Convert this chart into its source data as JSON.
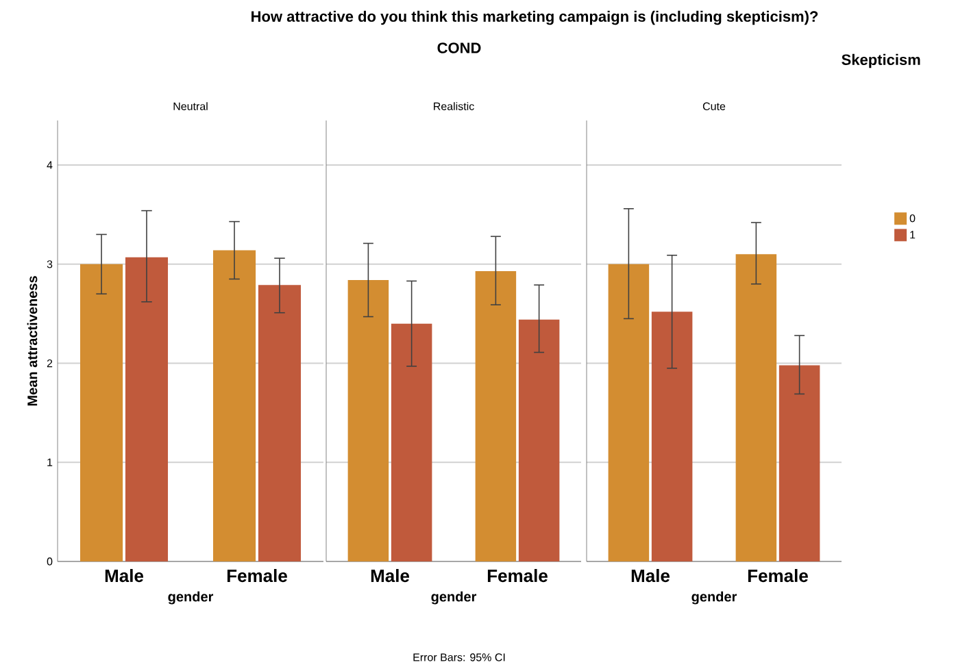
{
  "chart_data": [
    {
      "type": "bar",
      "title": "Neutral",
      "xlabel": "gender",
      "ylabel": "Mean attractiveness",
      "categories": [
        "Male",
        "Female"
      ],
      "series": [
        {
          "color": "#d38d31",
          "values": [
            3.0,
            3.14
          ],
          "errors": [
            [
              2.7,
              3.3
            ],
            [
              2.85,
              3.43
            ]
          ]
        },
        {
          "color": "#c05a3c",
          "values": [
            3.07,
            2.79
          ],
          "errors": [
            [
              2.62,
              3.54
            ],
            [
              2.51,
              3.06
            ]
          ]
        }
      ],
      "ylim": [
        0,
        4.45
      ],
      "yticks": [
        0,
        1,
        2,
        3,
        4
      ],
      "grid": "y",
      "annotations": [
        "How attractive do you think this marketing campaign is (including skepticism)?",
        "COND",
        "Error Bars: 95% CI"
      ]
    },
    {
      "type": "bar",
      "title": "Realistic",
      "xlabel": "gender",
      "categories": [
        "Male",
        "Female"
      ],
      "series": [
        {
          "color": "#d38d31",
          "values": [
            2.84,
            2.93
          ],
          "errors": [
            [
              2.47,
              3.21
            ],
            [
              2.59,
              3.28
            ]
          ]
        },
        {
          "color": "#c05a3c",
          "values": [
            2.4,
            2.44
          ],
          "errors": [
            [
              1.97,
              2.83
            ],
            [
              2.11,
              2.79
            ]
          ]
        }
      ],
      "ylim": [
        0,
        4.45
      ],
      "yticks": [
        0,
        1,
        2,
        3,
        4
      ],
      "grid": "y",
      "tick_labels": "x"
    },
    {
      "type": "bar",
      "title": "Cute",
      "xlabel": "gender",
      "categories": [
        "Male",
        "Female"
      ],
      "series": [
        {
          "name": "0",
          "color": "#d38d31",
          "values": [
            3.0,
            3.1
          ],
          "errors": [
            [
              2.45,
              3.56
            ],
            [
              2.8,
              3.42
            ]
          ]
        },
        {
          "name": "1",
          "color": "#c05a3c",
          "values": [
            2.52,
            1.98
          ],
          "errors": [
            [
              1.95,
              3.09
            ],
            [
              1.69,
              2.28
            ]
          ]
        }
      ],
      "ylim": [
        0,
        4.45
      ],
      "yticks": [
        0,
        1,
        2,
        3,
        4
      ],
      "grid": "y",
      "tick_labels": "x",
      "legend": "right",
      "legend_title": "Skepticism"
    }
  ]
}
